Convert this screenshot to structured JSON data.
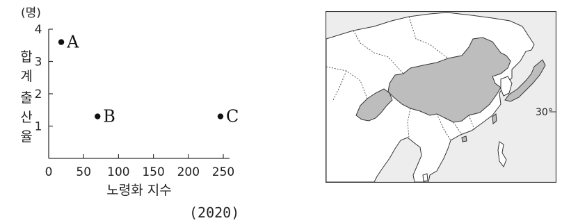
{
  "chart_data": {
    "type": "scatter",
    "title": "",
    "ylabel": "합계 출산율",
    "ylabel_chars": [
      "합",
      "계",
      "출",
      "산",
      "율"
    ],
    "yunit": "(명)",
    "xlabel": "노령화 지수",
    "note": "(2020)",
    "xlim": [
      0,
      250
    ],
    "ylim": [
      0,
      4
    ],
    "xticks": [
      "0",
      "50",
      "100",
      "150",
      "200",
      "250"
    ],
    "yticks": [
      "1",
      "2",
      "3",
      "4"
    ],
    "points": [
      {
        "label": "A",
        "x": 18,
        "y": 3.6
      },
      {
        "label": "B",
        "x": 70,
        "y": 1.3
      },
      {
        "label": "C",
        "x": 246,
        "y": 1.3
      }
    ]
  },
  "map": {
    "label": "30°",
    "highlight_color": "#bdbdbd",
    "land_color": "#ffffff",
    "sea_color": "#ededed",
    "border_color": "#333333"
  }
}
